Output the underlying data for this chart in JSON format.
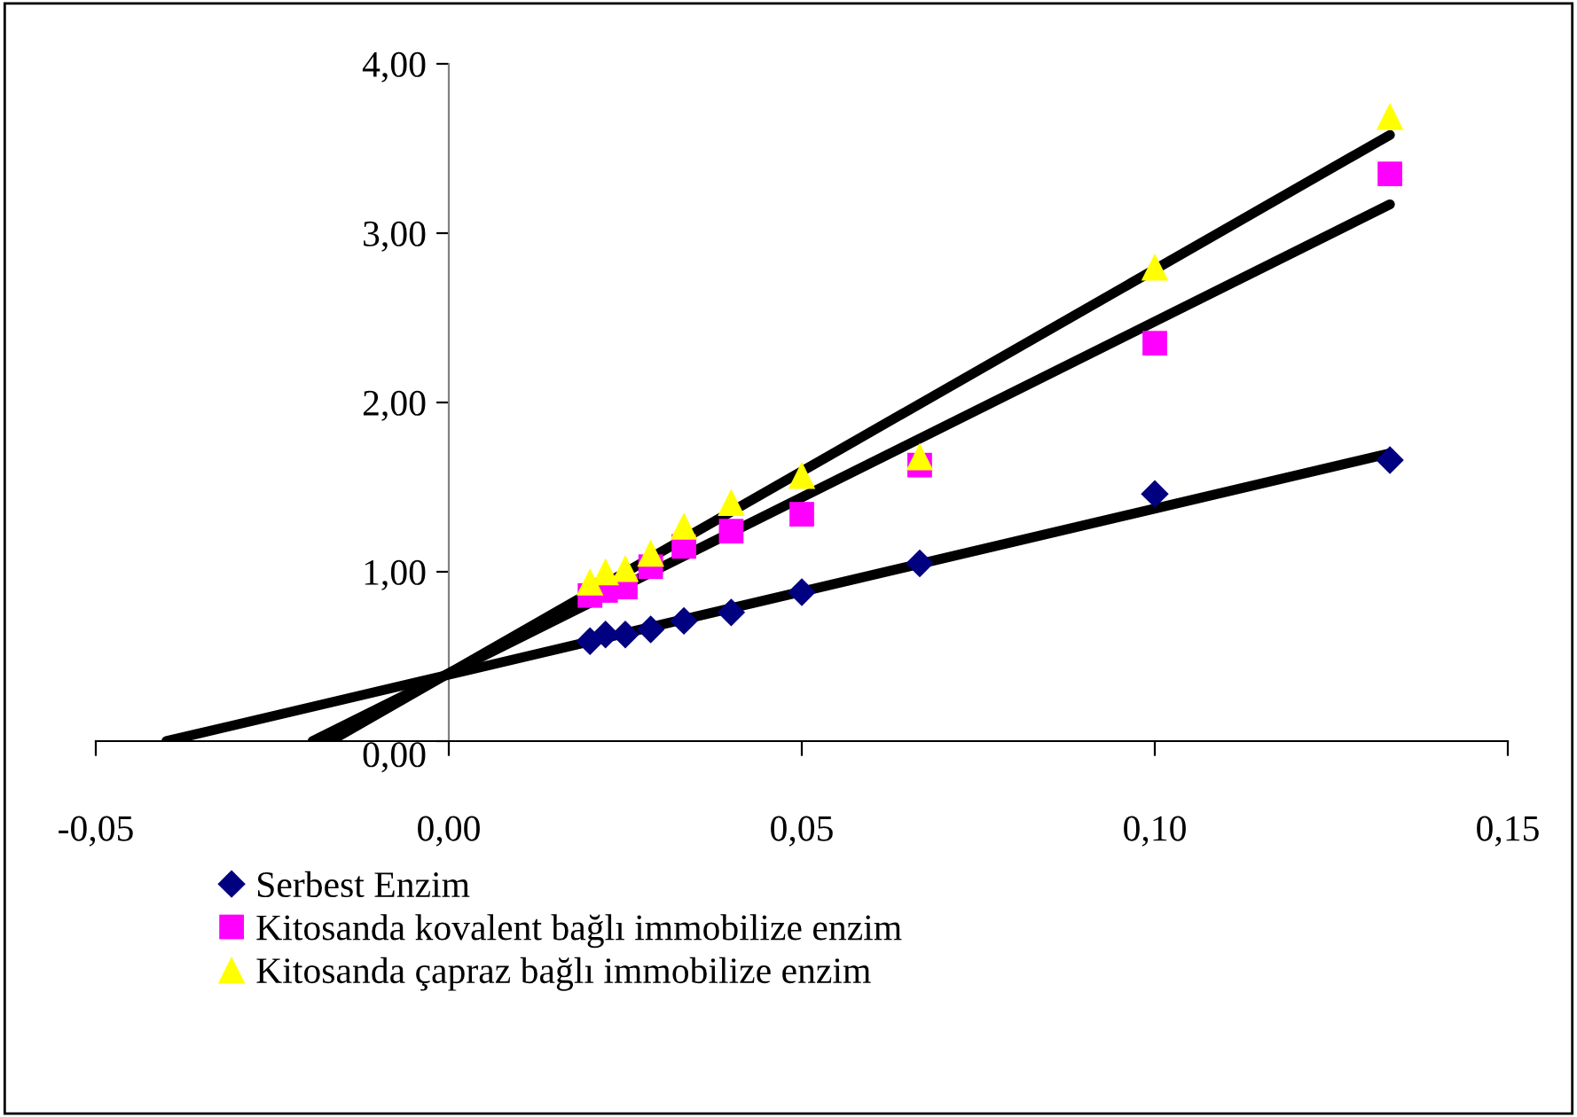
{
  "chart_data": {
    "type": "scatter",
    "x": [
      0.02,
      0.0222,
      0.025,
      0.0286,
      0.0333,
      0.04,
      0.05,
      0.0667,
      0.1,
      0.1333
    ],
    "series": [
      {
        "name": "Serbest Enzim",
        "color": "#000080",
        "marker": "diamond",
        "values": [
          0.59,
          0.63,
          0.63,
          0.66,
          0.71,
          0.76,
          0.88,
          1.05,
          1.46,
          1.66
        ]
      },
      {
        "name": "Kitosanda kovalent bağlı immobilize enzim",
        "color": "#ff00ff",
        "marker": "square",
        "values": [
          0.86,
          0.89,
          0.91,
          1.03,
          1.15,
          1.24,
          1.34,
          1.63,
          2.35,
          3.35
        ]
      },
      {
        "name": "Kitosanda çapraz bağlı immobilize enzim",
        "color": "#ffff00",
        "marker": "triangle",
        "values": [
          0.94,
          1.0,
          1.02,
          1.11,
          1.27,
          1.41,
          1.57,
          1.68,
          2.8,
          3.69
        ]
      },
      {
        "type": "line",
        "color": "#000000",
        "marker": "none",
        "x": [
          -0.04,
          0.1333
        ],
        "values": [
          0,
          1.7
        ]
      },
      {
        "type": "line",
        "color": "#000000",
        "marker": "none",
        "x": [
          -0.0193,
          0.1333
        ],
        "values": [
          0,
          3.17
        ]
      },
      {
        "type": "line",
        "color": "#000000",
        "marker": "none",
        "x": [
          -0.0168,
          0.1333
        ],
        "values": [
          0,
          3.58
        ]
      }
    ],
    "xlim": [
      -0.05,
      0.15
    ],
    "ylim": [
      0,
      4
    ],
    "xticks": [
      {
        "value": -0.05,
        "label": "-0,05"
      },
      {
        "value": 0,
        "label": "0,00"
      },
      {
        "value": 0.05,
        "label": "0,05"
      },
      {
        "value": 0.1,
        "label": "0,10"
      },
      {
        "value": 0.15,
        "label": "0,15"
      }
    ],
    "yticks": [
      {
        "value": 0,
        "label": "0,00"
      },
      {
        "value": 1,
        "label": "1,00"
      },
      {
        "value": 2,
        "label": "2,00"
      },
      {
        "value": 3,
        "label": "3,00"
      },
      {
        "value": 4,
        "label": "4,00"
      }
    ],
    "grid": false,
    "legend": "bottom"
  }
}
